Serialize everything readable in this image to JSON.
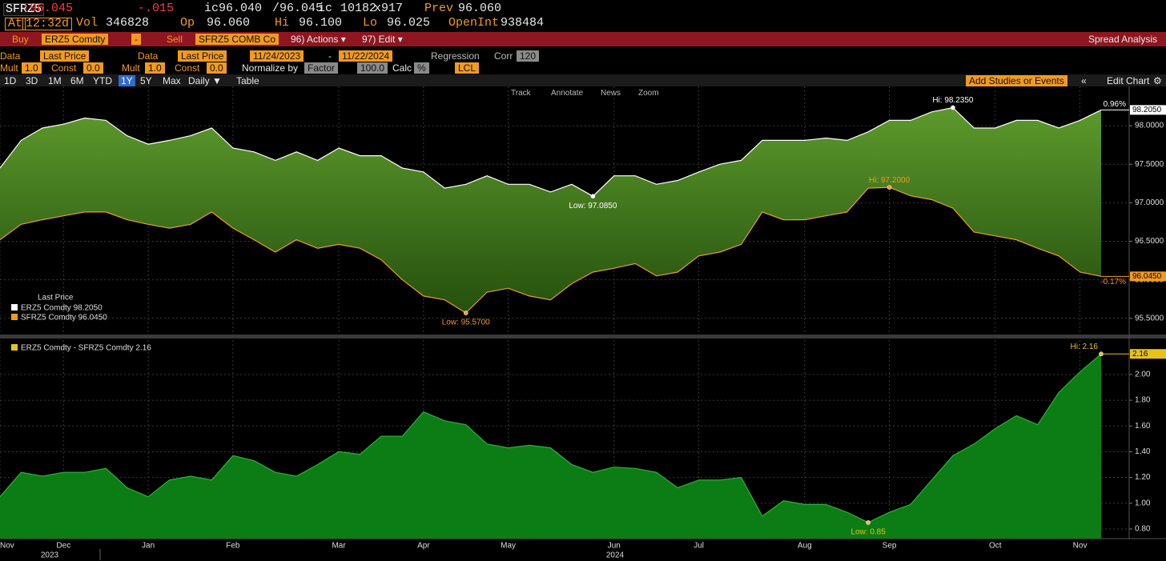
{
  "quote_bar": [
    "SFRZ5",
    "↑96.045",
    "-.015",
    "ic96.040",
    "/96.045",
    "ic",
    "10182",
    "x917",
    "Prev",
    "96.060"
  ],
  "stats_bar": [
    "At",
    "12:32d",
    "Vol",
    "346828",
    "Op",
    "96.060",
    "Hi",
    "96.100",
    "Lo",
    "96.025",
    "OpenInt",
    "938484"
  ],
  "spread_bar": [
    "Buy",
    "ERZ5 Comdty",
    "-",
    "Sell",
    "SFRZ5 COMB Co",
    "96) Actions ▾",
    "97) Edit ▾",
    "Spread Analysis"
  ],
  "settings_row1": [
    "Data",
    "Last Price",
    "Data",
    "Last Price",
    "11/24/2023",
    "-",
    "11/22/2024",
    "Regression",
    "Corr",
    "120"
  ],
  "settings_row2": [
    "Mult",
    "1.0",
    "Const",
    "0.0",
    "Mult",
    "1.0",
    "Const",
    "0.0",
    "Normalize by",
    "Factor",
    "100.0",
    "Calc",
    "%",
    "LCL"
  ],
  "range_row": [
    "1D",
    "3D",
    "1M",
    "6M",
    "YTD",
    "1Y",
    "5Y",
    "Max",
    "Daily ▼",
    "Table",
    "Add Studies or Events",
    "«",
    "Edit Chart",
    "⚙"
  ],
  "chart_tools": [
    "Track",
    "Annotate",
    "News",
    "Zoom"
  ],
  "year_labels": [
    "2023",
    "2024"
  ],
  "chart_data": [
    {
      "type": "line",
      "fill_color": "url(#g1)",
      "grid": true,
      "legend": "lower left",
      "legend_title": "Last Price",
      "ylim": [
        95.29,
        98.51
      ],
      "yticks": [
        {
          "value": 95.5,
          "label": "95.5000"
        },
        {
          "value": 96,
          "label": "96.0000"
        },
        {
          "value": 96.5,
          "label": "96.5000"
        },
        {
          "value": 97,
          "label": "97.0000"
        },
        {
          "value": 97.5,
          "label": "97.5000"
        },
        {
          "value": 98,
          "label": "98.0000"
        }
      ],
      "series": [
        {
          "name": "ERZ5 Comdty 98.2050",
          "color": "#ffffff",
          "hi_label": "Hi: 98.2350",
          "low_label": "Low: 97.0850",
          "last_label": "98.2050",
          "change_label": "0.96%",
          "values": [
            97.45,
            97.81,
            97.97,
            98.02,
            98.1,
            98.07,
            97.87,
            97.76,
            97.81,
            97.87,
            97.97,
            97.71,
            97.66,
            97.55,
            97.66,
            97.55,
            97.71,
            97.61,
            97.61,
            97.45,
            97.4,
            97.19,
            97.24,
            97.35,
            97.24,
            97.24,
            97.14,
            97.24,
            97.085,
            97.35,
            97.35,
            97.24,
            97.29,
            97.4,
            97.5,
            97.55,
            97.81,
            97.81,
            97.81,
            97.84,
            97.81,
            97.92,
            98.07,
            98.07,
            98.18,
            98.235,
            97.97,
            97.97,
            98.07,
            98.07,
            97.97,
            98.07,
            98.205
          ]
        },
        {
          "name": "SFRZ5 Comdty 96.0450",
          "color": "#f39a1e",
          "hi_label": "Hi: 97.2000",
          "low_label": "Low: 95.5700",
          "last_label": "96.0450",
          "change_label": "-0.17%",
          "values": [
            96.52,
            96.72,
            96.78,
            96.83,
            96.88,
            96.88,
            96.78,
            96.72,
            96.67,
            96.72,
            96.88,
            96.67,
            96.52,
            96.36,
            96.52,
            96.41,
            96.46,
            96.41,
            96.26,
            96.0,
            95.79,
            95.74,
            95.57,
            95.84,
            95.89,
            95.79,
            95.74,
            95.95,
            96.1,
            96.15,
            96.21,
            96.05,
            96.1,
            96.31,
            96.36,
            96.46,
            96.88,
            96.78,
            96.78,
            96.83,
            96.88,
            97.19,
            97.2,
            97.09,
            97.04,
            96.93,
            96.62,
            96.57,
            96.52,
            96.41,
            96.31,
            96.1,
            96.045
          ]
        }
      ]
    },
    {
      "type": "area",
      "fill_color": "#0b7d14",
      "grid": true,
      "legend": "upper left",
      "ylim": [
        0.725,
        2.267
      ],
      "yticks": [
        {
          "value": 0.8,
          "label": "0.80"
        },
        {
          "value": 1,
          "label": "1.00"
        },
        {
          "value": 1.2,
          "label": "1.20"
        },
        {
          "value": 1.4,
          "label": "1.40"
        },
        {
          "value": 1.6,
          "label": "1.60"
        },
        {
          "value": 1.8,
          "label": "1.80"
        },
        {
          "value": 2,
          "label": "2.00"
        }
      ],
      "categories": [
        "Nov",
        null,
        null,
        "Dec",
        null,
        null,
        null,
        "Jan",
        null,
        null,
        null,
        "Feb",
        null,
        null,
        null,
        null,
        "Mar",
        null,
        null,
        null,
        "Apr",
        null,
        null,
        null,
        "May",
        null,
        null,
        null,
        null,
        "Jun",
        null,
        null,
        null,
        "Jul",
        null,
        null,
        null,
        null,
        "Aug",
        null,
        null,
        null,
        "Sep",
        null,
        null,
        null,
        null,
        "Oct",
        null,
        null,
        null,
        "Nov",
        null
      ],
      "series": [
        {
          "name": "ERZ5 Comdty - SFRZ5 Comdty 2.16",
          "color": "#e8c21a",
          "line_color": "#2fae3a",
          "hi_label": "Hi: 2.16",
          "low_label": "Low: 0.85",
          "last_label": "2.16",
          "values": [
            1.05,
            1.24,
            1.21,
            1.24,
            1.24,
            1.27,
            1.12,
            1.05,
            1.18,
            1.21,
            1.18,
            1.37,
            1.33,
            1.24,
            1.21,
            1.3,
            1.4,
            1.38,
            1.52,
            1.52,
            1.71,
            1.64,
            1.61,
            1.46,
            1.43,
            1.45,
            1.43,
            1.3,
            1.24,
            1.28,
            1.27,
            1.24,
            1.12,
            1.18,
            1.18,
            1.2,
            0.9,
            1.02,
            0.99,
            0.99,
            0.93,
            0.85,
            0.93,
            0.99,
            1.18,
            1.37,
            1.46,
            1.58,
            1.68,
            1.61,
            1.86,
            2.02,
            2.16
          ]
        }
      ]
    }
  ]
}
